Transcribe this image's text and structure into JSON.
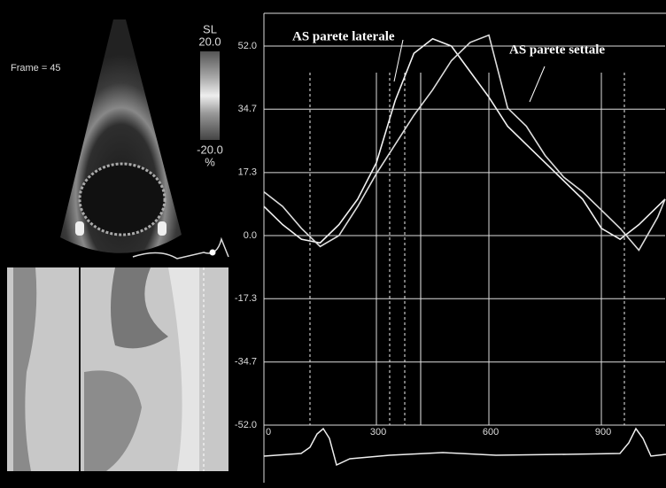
{
  "panel": {
    "frame_label": "Frame = 45",
    "colorbar": {
      "title": "SL",
      "max_label": "20.0",
      "min_label": "-20.0",
      "unit": "%"
    }
  },
  "chart_data": {
    "type": "line",
    "x": [
      0,
      50,
      100,
      150,
      200,
      250,
      300,
      350,
      400,
      450,
      500,
      550,
      600,
      650,
      700,
      750,
      800,
      850,
      900,
      950,
      1000,
      1050,
      1070
    ],
    "series": [
      {
        "name": "AS parete laterale",
        "color": "#f2f2f2",
        "values": [
          8,
          3,
          -1,
          -2,
          3,
          10,
          20,
          37,
          50,
          54,
          52,
          45,
          38,
          30,
          25,
          20,
          15,
          10,
          2,
          -1,
          3,
          8,
          10
        ]
      },
      {
        "name": "AS parete settale",
        "color": "#dcdcdc",
        "values": [
          12,
          8,
          2,
          -3,
          0,
          8,
          17,
          25,
          33,
          40,
          48,
          53,
          55,
          35,
          30,
          22,
          16,
          12,
          7,
          2,
          -4,
          5,
          10
        ]
      }
    ],
    "xlim": [
      0,
      1070
    ],
    "ylim": [
      -52,
      61
    ],
    "xticks": [
      0,
      300,
      600,
      900
    ],
    "yticks": [
      {
        "value": 52,
        "label": "52.0"
      },
      34.7,
      17.3,
      {
        "value": 0,
        "label": "0.0"
      },
      -17.3,
      -34.7,
      {
        "value": -52,
        "label": "-52.0"
      }
    ],
    "grid": true
  }
}
